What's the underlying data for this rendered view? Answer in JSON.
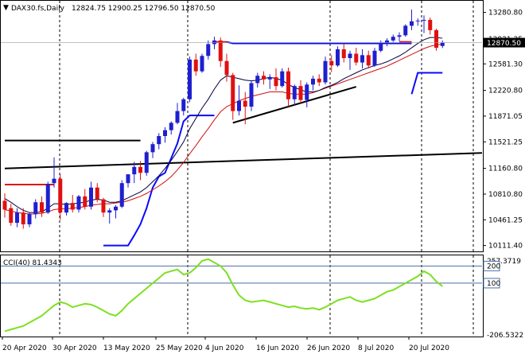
{
  "header": {
    "arrow_glyph": "▼",
    "symbol_tf": "DAX30.fs,Daily",
    "ohlc": "12824.75 12900.25 12796.50 12870.50"
  },
  "colors": {
    "bull": "#1f1fd0",
    "bear": "#e01010",
    "fast_ma": "#0a0aff",
    "ma10": "#000040",
    "ma20": "#d01010",
    "trend": "#000000",
    "cci": "#7ee020",
    "grid": "#000000",
    "level_line": "#4b6fa8",
    "price_marker_bg": "#000000"
  },
  "chart_data": [
    {
      "type": "candlestick",
      "title": "",
      "y_ticks": [
        13280.8,
        12921.35,
        12581.3,
        12220.8,
        11871.05,
        11521.25,
        11160.8,
        10810.8,
        10461.25,
        10111.4
      ],
      "y_tick_labels": [
        "13280.80",
        "12921.35",
        "12581.30",
        "12220.80",
        "11871.05",
        "11521.25",
        "11160.80",
        "10810.80",
        "10461.25",
        "10111.40"
      ],
      "ylim": [
        10075,
        13385
      ],
      "current_price_label": "12870.50",
      "current_price": 12870.5,
      "x_tick_labels": [
        "20 Apr 2020",
        "30 Apr 2020",
        "13 May 2020",
        "25 May 2020",
        "4 Jun 2020",
        "16 Jun 2020",
        "26 Jun 2020",
        "8 Jul 2020",
        "20 Jul 2020"
      ],
      "x_tick_index": [
        0,
        8,
        17,
        26,
        34,
        43,
        51,
        60,
        69
      ],
      "candles": [
        {
          "o": 10720,
          "h": 10820,
          "l": 10490,
          "c": 10600
        },
        {
          "o": 10620,
          "h": 10680,
          "l": 10380,
          "c": 10420
        },
        {
          "o": 10420,
          "h": 10620,
          "l": 10360,
          "c": 10560
        },
        {
          "o": 10560,
          "h": 10620,
          "l": 10340,
          "c": 10400
        },
        {
          "o": 10400,
          "h": 10560,
          "l": 10360,
          "c": 10540
        },
        {
          "o": 10540,
          "h": 10740,
          "l": 10480,
          "c": 10700
        },
        {
          "o": 10700,
          "h": 10780,
          "l": 10500,
          "c": 10560
        },
        {
          "o": 10560,
          "h": 10980,
          "l": 10540,
          "c": 10950
        },
        {
          "o": 10960,
          "h": 11310,
          "l": 10900,
          "c": 11020
        },
        {
          "o": 11020,
          "h": 11080,
          "l": 10460,
          "c": 10560
        },
        {
          "o": 10560,
          "h": 10700,
          "l": 10520,
          "c": 10690
        },
        {
          "o": 10690,
          "h": 10800,
          "l": 10560,
          "c": 10600
        },
        {
          "o": 10600,
          "h": 10800,
          "l": 10560,
          "c": 10780
        },
        {
          "o": 10780,
          "h": 10880,
          "l": 10600,
          "c": 10640
        },
        {
          "o": 10640,
          "h": 10980,
          "l": 10600,
          "c": 10900
        },
        {
          "o": 10900,
          "h": 10960,
          "l": 10700,
          "c": 10740
        },
        {
          "o": 10740,
          "h": 10760,
          "l": 10500,
          "c": 10560
        },
        {
          "o": 10560,
          "h": 10620,
          "l": 10410,
          "c": 10590
        },
        {
          "o": 10590,
          "h": 10660,
          "l": 10480,
          "c": 10640
        },
        {
          "o": 10640,
          "h": 11000,
          "l": 10620,
          "c": 10960
        },
        {
          "o": 10960,
          "h": 11080,
          "l": 10900,
          "c": 11080
        },
        {
          "o": 11080,
          "h": 11250,
          "l": 10960,
          "c": 11180
        },
        {
          "o": 11180,
          "h": 11260,
          "l": 11000,
          "c": 11100
        },
        {
          "o": 11100,
          "h": 11400,
          "l": 11060,
          "c": 11380
        },
        {
          "o": 11380,
          "h": 11520,
          "l": 11300,
          "c": 11490
        },
        {
          "o": 11490,
          "h": 11640,
          "l": 11420,
          "c": 11600
        },
        {
          "o": 11600,
          "h": 11720,
          "l": 11510,
          "c": 11680
        },
        {
          "o": 11680,
          "h": 11800,
          "l": 11620,
          "c": 11780
        },
        {
          "o": 11780,
          "h": 12050,
          "l": 11760,
          "c": 11940
        },
        {
          "o": 11940,
          "h": 12120,
          "l": 11880,
          "c": 12100
        },
        {
          "o": 12100,
          "h": 12680,
          "l": 12060,
          "c": 12640
        },
        {
          "o": 12640,
          "h": 12720,
          "l": 12420,
          "c": 12480
        },
        {
          "o": 12480,
          "h": 12720,
          "l": 12460,
          "c": 12690
        },
        {
          "o": 12690,
          "h": 12900,
          "l": 12640,
          "c": 12850
        },
        {
          "o": 12850,
          "h": 12950,
          "l": 12780,
          "c": 12900
        },
        {
          "o": 12900,
          "h": 12940,
          "l": 12540,
          "c": 12620
        },
        {
          "o": 12620,
          "h": 12720,
          "l": 12340,
          "c": 12430
        },
        {
          "o": 12430,
          "h": 12460,
          "l": 11820,
          "c": 11940
        },
        {
          "o": 11940,
          "h": 12290,
          "l": 11880,
          "c": 12080
        },
        {
          "o": 12080,
          "h": 12200,
          "l": 11760,
          "c": 12000
        },
        {
          "o": 12000,
          "h": 12360,
          "l": 11940,
          "c": 12320
        },
        {
          "o": 12320,
          "h": 12460,
          "l": 12260,
          "c": 12420
        },
        {
          "o": 12420,
          "h": 12480,
          "l": 12300,
          "c": 12370
        },
        {
          "o": 12370,
          "h": 12440,
          "l": 12240,
          "c": 12400
        },
        {
          "o": 12400,
          "h": 12520,
          "l": 12220,
          "c": 12280
        },
        {
          "o": 12280,
          "h": 12520,
          "l": 12260,
          "c": 12480
        },
        {
          "o": 12480,
          "h": 12530,
          "l": 12000,
          "c": 12100
        },
        {
          "o": 12100,
          "h": 12300,
          "l": 12020,
          "c": 12280
        },
        {
          "o": 12280,
          "h": 12360,
          "l": 12050,
          "c": 12090
        },
        {
          "o": 12090,
          "h": 12330,
          "l": 11990,
          "c": 12300
        },
        {
          "o": 12300,
          "h": 12420,
          "l": 12220,
          "c": 12380
        },
        {
          "o": 12380,
          "h": 12440,
          "l": 12280,
          "c": 12330
        },
        {
          "o": 12330,
          "h": 12680,
          "l": 12300,
          "c": 12620
        },
        {
          "o": 12620,
          "h": 12700,
          "l": 12470,
          "c": 12560
        },
        {
          "o": 12560,
          "h": 12820,
          "l": 12540,
          "c": 12780
        },
        {
          "o": 12780,
          "h": 12860,
          "l": 12600,
          "c": 12660
        },
        {
          "o": 12660,
          "h": 12760,
          "l": 12500,
          "c": 12720
        },
        {
          "o": 12720,
          "h": 12800,
          "l": 12560,
          "c": 12600
        },
        {
          "o": 12600,
          "h": 12780,
          "l": 12520,
          "c": 12700
        },
        {
          "o": 12700,
          "h": 12760,
          "l": 12520,
          "c": 12560
        },
        {
          "o": 12560,
          "h": 12800,
          "l": 12540,
          "c": 12760
        },
        {
          "o": 12760,
          "h": 12900,
          "l": 12740,
          "c": 12870
        },
        {
          "o": 12870,
          "h": 12930,
          "l": 12820,
          "c": 12900
        },
        {
          "o": 12900,
          "h": 12980,
          "l": 12880,
          "c": 12950
        },
        {
          "o": 12950,
          "h": 13010,
          "l": 12890,
          "c": 12970
        },
        {
          "o": 12970,
          "h": 13120,
          "l": 12950,
          "c": 13100
        },
        {
          "o": 13100,
          "h": 13320,
          "l": 13040,
          "c": 13160
        },
        {
          "o": 13160,
          "h": 13200,
          "l": 13100,
          "c": 13170
        },
        {
          "o": 13170,
          "h": 13240,
          "l": 13000,
          "c": 13180
        },
        {
          "o": 13180,
          "h": 13210,
          "l": 12980,
          "c": 13040
        },
        {
          "o": 13040,
          "h": 13060,
          "l": 12760,
          "c": 12800
        },
        {
          "o": 12824.75,
          "h": 12900.25,
          "l": 12796.5,
          "c": 12870.5
        }
      ],
      "fast_ma": [
        null,
        null,
        null,
        null,
        null,
        null,
        null,
        null,
        null,
        null,
        null,
        null,
        null,
        null,
        null,
        null,
        null,
        null,
        null,
        null,
        null,
        null,
        null,
        null,
        null,
        null,
        null,
        null,
        null,
        null,
        null,
        null,
        null,
        null,
        null,
        null,
        null,
        null,
        null,
        null,
        null,
        null,
        null,
        null,
        null,
        null,
        null,
        null,
        null,
        null,
        null,
        null,
        null,
        null,
        null,
        null,
        null,
        null,
        null,
        null,
        null,
        null,
        null,
        null,
        null,
        null,
        null,
        null,
        null,
        null,
        null,
        null
      ],
      "indicator_fast": {
        "segments": [
          [
            [
              16,
              10111
            ],
            [
              19,
              10111
            ],
            [
              20,
              10111
            ],
            [
              21,
              10250
            ],
            [
              22,
              10400
            ],
            [
              23,
              10620
            ],
            [
              24,
              10900
            ],
            [
              25,
              11050
            ],
            [
              26,
              11100
            ],
            [
              27,
              11300
            ],
            [
              28,
              11500
            ],
            [
              29,
              11800
            ],
            [
              30,
              11880
            ],
            [
              31,
              11880
            ],
            [
              32,
              11880
            ],
            [
              33,
              11880
            ],
            [
              34,
              11880
            ]
          ],
          [
            [
              36,
              12880
            ],
            [
              37,
              12860
            ],
            [
              38,
              12860
            ],
            [
              39,
              12860
            ],
            [
              40,
              12860
            ],
            [
              41,
              12860
            ],
            [
              42,
              12860
            ],
            [
              43,
              12860
            ],
            [
              44,
              12860
            ],
            [
              45,
              12860
            ],
            [
              46,
              12860
            ],
            [
              47,
              12860
            ],
            [
              48,
              12860
            ],
            [
              49,
              12860
            ],
            [
              50,
              12860
            ],
            [
              51,
              12860
            ],
            [
              52,
              12860
            ],
            [
              53,
              12860
            ],
            [
              54,
              12860
            ],
            [
              55,
              12860
            ],
            [
              56,
              12860
            ],
            [
              57,
              12860
            ],
            [
              58,
              12860
            ],
            [
              59,
              12860
            ],
            [
              60,
              12860
            ],
            [
              61,
              12860
            ],
            [
              62,
              12860
            ],
            [
              63,
              12860
            ],
            [
              64,
              12860
            ],
            [
              65,
              12860
            ],
            [
              66,
              12860
            ]
          ],
          [
            [
              66,
              12170
            ],
            [
              67,
              12460
            ],
            [
              68,
              12460
            ],
            [
              69,
              12460
            ],
            [
              70,
              12460
            ],
            [
              71,
              12460
            ]
          ],
          [
            [
              0,
              11020
            ],
            [
              8,
              11020
            ]
          ]
        ]
      },
      "ma10": [
        10750,
        10700,
        10640,
        10590,
        10560,
        10560,
        10570,
        10620,
        10680,
        10680,
        10670,
        10680,
        10690,
        10700,
        10730,
        10740,
        10730,
        10700,
        10700,
        10720,
        10760,
        10800,
        10840,
        10900,
        10980,
        11060,
        11160,
        11270,
        11390,
        11520,
        11700,
        11840,
        11980,
        12100,
        12240,
        12360,
        12420,
        12400,
        12380,
        12360,
        12350,
        12360,
        12380,
        12400,
        12380,
        12360,
        12300,
        12260,
        12230,
        12200,
        12200,
        12220,
        12260,
        12290,
        12330,
        12380,
        12420,
        12460,
        12500,
        12530,
        12560,
        12580,
        12610,
        12650,
        12690,
        12740,
        12800,
        12860,
        12910,
        12940,
        12940,
        12930
      ],
      "ma20": [
        10600,
        10580,
        10560,
        10550,
        10540,
        10540,
        10550,
        10570,
        10600,
        10610,
        10610,
        10620,
        10630,
        10640,
        10660,
        10670,
        10680,
        10680,
        10690,
        10700,
        10720,
        10750,
        10780,
        10820,
        10870,
        10920,
        10980,
        11050,
        11140,
        11240,
        11360,
        11470,
        11590,
        11700,
        11820,
        11930,
        12000,
        12040,
        12080,
        12110,
        12140,
        12160,
        12180,
        12200,
        12200,
        12200,
        12180,
        12170,
        12170,
        12170,
        12190,
        12220,
        12250,
        12280,
        12310,
        12340,
        12370,
        12400,
        12430,
        12460,
        12490,
        12520,
        12550,
        12590,
        12630,
        12670,
        12710,
        12750,
        12790,
        12820,
        12840,
        12850
      ],
      "red_stops": [
        [
          [
            0,
            10940
          ],
          [
            8,
            10940
          ]
        ],
        [
          [
            34,
            12880
          ],
          [
            36,
            12880
          ]
        ],
        [
          [
            64,
            12880
          ],
          [
            66,
            12880
          ]
        ]
      ],
      "trend_lines": [
        {
          "name": "horizontal-upper-black",
          "points": [
            [
              0,
              11540
            ],
            [
              22,
              11540
            ]
          ]
        },
        {
          "name": "long-uptrend-black",
          "points": [
            [
              0,
              11160
            ],
            [
              98,
              11370
            ]
          ]
        },
        {
          "name": "support-uptrend-black",
          "points": [
            [
              37,
              11780
            ],
            [
              57,
              12270
            ]
          ]
        }
      ]
    },
    {
      "type": "line",
      "title": "CCI(40) 81.4343",
      "y_tick_labels": [
        "257.3719",
        "200",
        "100",
        "-206.5322"
      ],
      "y_ticks": [
        257.3719,
        200,
        100,
        -206.5322
      ],
      "ylim": [
        -206.5322,
        257.3719
      ],
      "levels": [
        200,
        100
      ],
      "cci": [
        -180,
        -170,
        -160,
        -150,
        -130,
        -110,
        -90,
        -60,
        -30,
        -10,
        -20,
        -40,
        -30,
        -20,
        -25,
        -40,
        -60,
        -80,
        -90,
        -60,
        -20,
        10,
        40,
        70,
        100,
        130,
        160,
        170,
        180,
        150,
        160,
        190,
        230,
        240,
        220,
        200,
        160,
        90,
        30,
        0,
        -10,
        -5,
        0,
        -10,
        -20,
        -30,
        -40,
        -35,
        -45,
        -50,
        -45,
        -55,
        -40,
        -20,
        0,
        10,
        20,
        0,
        -10,
        0,
        10,
        30,
        50,
        60,
        80,
        100,
        120,
        140,
        170,
        150,
        110,
        81.4343
      ]
    }
  ]
}
